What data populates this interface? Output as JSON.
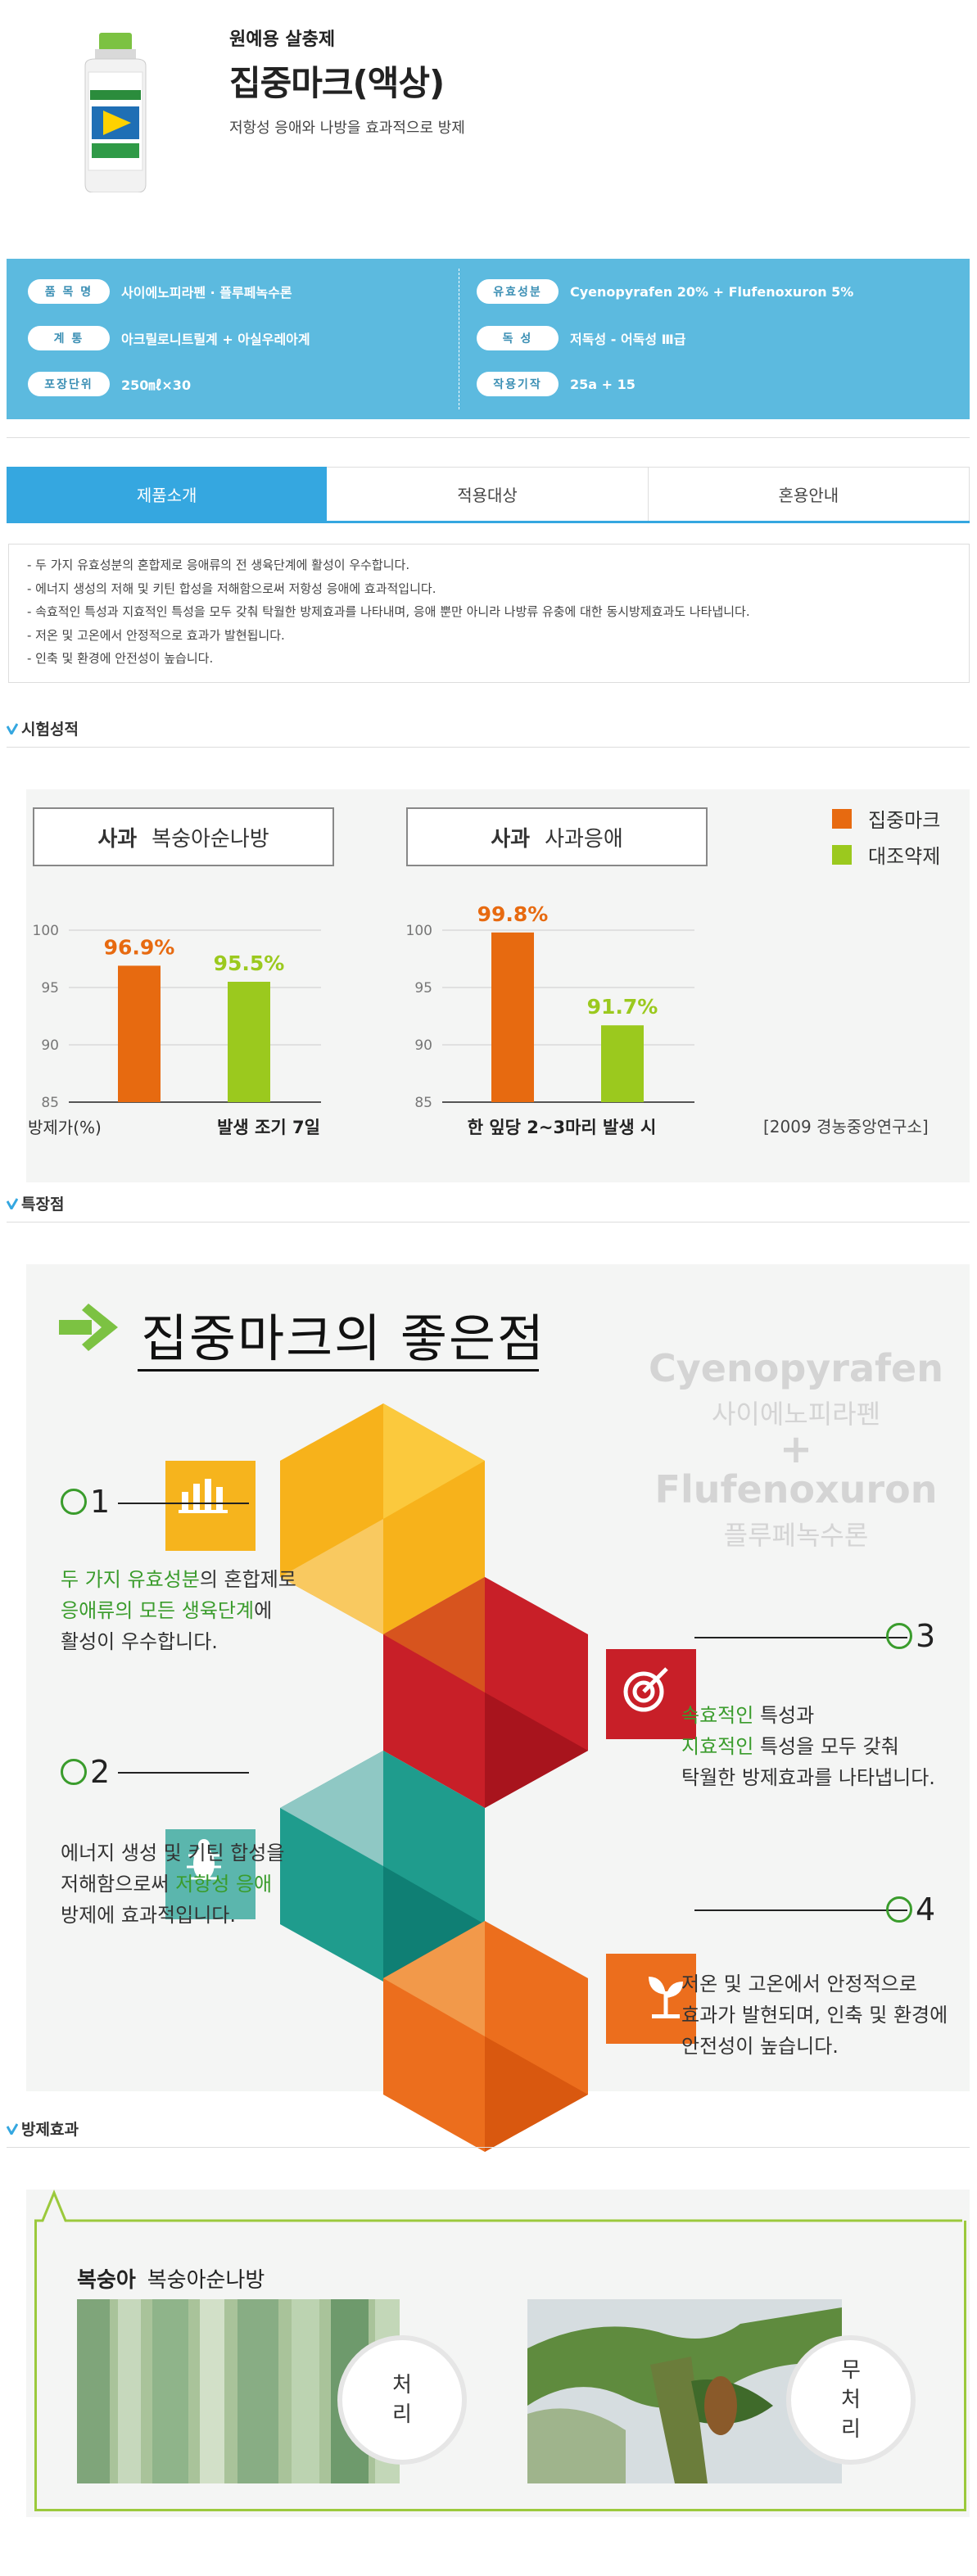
{
  "header": {
    "category": "원예용 살충제",
    "title": "집중마크(액상)",
    "subtitle": "저항성 응애와 나방을 효과적으로 방제"
  },
  "specs": {
    "left": [
      {
        "label": "품 목 명",
        "value": "사이에노피라펜 · 플루페녹수론"
      },
      {
        "label": "계 통",
        "value": "아크릴로니트릴계 + 아실우레아계"
      },
      {
        "label": "포장단위",
        "value": "250㎖×30"
      }
    ],
    "right": [
      {
        "label": "유효성분",
        "value": "Cyenopyrafen 20% + Flufenoxuron 5%"
      },
      {
        "label": "독 성",
        "value": "저독성 - 어독성 Ⅲ급"
      },
      {
        "label": "작용기작",
        "value": "25a + 15"
      }
    ]
  },
  "tabs": [
    "제품소개",
    "적용대상",
    "혼용안내"
  ],
  "intro": [
    "- 두 가지 유효성분의 혼합제로 응애류의 전 생육단계에 활성이 우수합니다.",
    "- 에너지 생성의 저해 및 키틴 합성을 저해함으로써 저항성 응애에 효과적입니다.",
    "- 속효적인 특성과 지효적인 특성을 모두 갖춰 탁월한 방제효과를 나타내며, 응애 뿐만 아니라 나방류 유충에 대한 동시방제효과도 나타냅니다.",
    "- 저온 및 고온에서 안정적으로 효과가 발현됩니다.",
    "- 인축 및 환경에 안전성이 높습니다."
  ],
  "sections": {
    "trial": "시험성적",
    "features": "특장점",
    "effect": "방제효과"
  },
  "colors": {
    "brand": "#e76a10",
    "control": "#9bc91e",
    "spec_bg": "#5cbadf",
    "tab_active": "#35a7e0",
    "green_text": "#3a9c2c"
  },
  "chart_data": [
    {
      "type": "bar",
      "crop": "사과",
      "pest": "복숭아순나방",
      "categories": [
        "집중마크",
        "대조약제"
      ],
      "values": [
        96.9,
        95.5
      ],
      "value_labels": [
        "96.9%",
        "95.5%"
      ],
      "ylim": [
        85,
        100
      ],
      "yticks": [
        85,
        90,
        95,
        100
      ],
      "ylabel": "방제가(%)",
      "xlabel": "발생 조기 7일"
    },
    {
      "type": "bar",
      "crop": "사과",
      "pest": "사과응애",
      "categories": [
        "집중마크",
        "대조약제"
      ],
      "values": [
        99.8,
        91.7
      ],
      "value_labels": [
        "99.8%",
        "91.7%"
      ],
      "ylim": [
        85,
        100
      ],
      "yticks": [
        85,
        90,
        95,
        100
      ],
      "xlabel": "한 잎당 2~3마리 발생 시"
    }
  ],
  "chart_legend": [
    "집중마크",
    "대조약제"
  ],
  "chart_source": "[2009 경농중앙연구소]",
  "features": {
    "title": "집중마크의 좋은점",
    "ghost": {
      "ing1": "Cyenopyrafen",
      "ing1_kr": "사이에노피라펜",
      "plus": "+",
      "ing2": "Flufenoxuron",
      "ing2_kr": "플루페녹수론"
    },
    "items": [
      {
        "num": "1",
        "lines": [
          [
            {
              "t": "두 가지 유효성분",
              "g": true
            },
            {
              "t": "의 혼합제로",
              "g": false
            }
          ],
          [
            {
              "t": "응애류의 모든 생육단계",
              "g": true
            },
            {
              "t": "에",
              "g": false
            }
          ],
          [
            {
              "t": "활성이 우수합니다.",
              "g": false
            }
          ]
        ]
      },
      {
        "num": "2",
        "lines": [
          [
            {
              "t": "에너지 생성 및 키틴 합성을",
              "g": false
            }
          ],
          [
            {
              "t": "저해함으로써 ",
              "g": false
            },
            {
              "t": "저항성 응애",
              "g": true
            }
          ],
          [
            {
              "t": "방제에 효과적입니다.",
              "g": false
            }
          ]
        ]
      },
      {
        "num": "3",
        "lines": [
          [
            {
              "t": "속효적인",
              "g": true
            },
            {
              "t": " 특성과",
              "g": false
            }
          ],
          [
            {
              "t": "지효적인",
              "g": true
            },
            {
              "t": " 특성을 모두 갖춰",
              "g": false
            }
          ],
          [
            {
              "t": "탁월한 방제효과를 나타냅니다.",
              "g": false
            }
          ]
        ]
      },
      {
        "num": "4",
        "lines": [
          [
            {
              "t": "저온 및 고온에서  안정적으로",
              "g": false
            }
          ],
          [
            {
              "t": "효과가 발현되며, 인축 및 환경에",
              "g": false
            }
          ],
          [
            {
              "t": "안전성이 높습니다.",
              "g": false
            }
          ]
        ]
      }
    ],
    "icons": [
      "bar-chart-icon",
      "target-icon",
      "bug-icon",
      "sprout-icon"
    ]
  },
  "effect": {
    "crop": "복숭아",
    "pest": "복숭아순나방",
    "treated_line1": "처",
    "treated_line2": "리",
    "untreated_line1": "무",
    "untreated_line2": "처",
    "untreated_line3": "리"
  }
}
